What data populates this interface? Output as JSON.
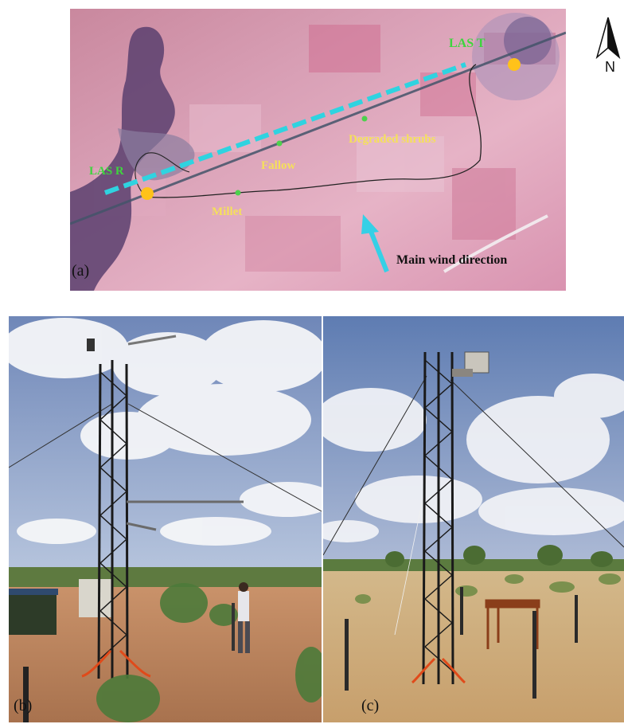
{
  "panel_a": {
    "label": "(a)",
    "site_las_t": "LAS T",
    "site_las_r": "LAS R",
    "land_degraded": "Degraded shrubs",
    "land_fallow": "Fallow",
    "land_millet": "Millet",
    "wind": "Main wind direction",
    "colors": {
      "las_path": "#2fd3e0",
      "site_marker": "#ffc21a",
      "site_text": "#3ed53e",
      "landcover_text": "#f5e05a"
    }
  },
  "north": {
    "letter": "N",
    "icon": "north-arrow-icon"
  },
  "panel_b": {
    "label": "(b)"
  },
  "panel_c": {
    "label": "(c)"
  }
}
